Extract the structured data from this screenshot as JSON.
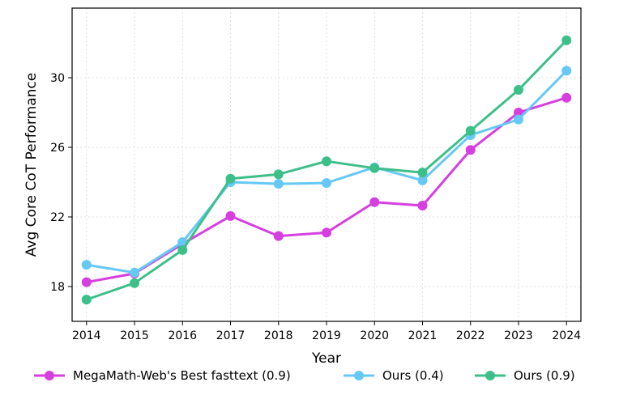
{
  "chart_data": {
    "type": "line",
    "xlabel": "Year",
    "ylabel": "Avg Core CoT Performance",
    "x": [
      2014,
      2015,
      2016,
      2017,
      2018,
      2019,
      2020,
      2021,
      2022,
      2023,
      2024
    ],
    "x_ticks": [
      "2014",
      "2015",
      "2016",
      "2017",
      "2018",
      "2019",
      "2020",
      "2021",
      "2022",
      "2023",
      "2024"
    ],
    "y_ticks": [
      18,
      22,
      26,
      30
    ],
    "y_tick_labels": [
      "18",
      "22",
      "26",
      "30"
    ],
    "xlim": [
      2013.7,
      2024.3
    ],
    "ylim": [
      16,
      34
    ],
    "grid": true,
    "legend_position": "bottom",
    "series": [
      {
        "name": "MegaMath-Web's Best fasttext (0.9)",
        "color": "#d63ee0",
        "values": [
          18.25,
          18.75,
          20.45,
          22.05,
          20.9,
          21.1,
          22.85,
          22.65,
          25.85,
          28.0,
          28.85
        ]
      },
      {
        "name": "Ours (0.4)",
        "color": "#66c8f5",
        "values": [
          19.25,
          18.8,
          20.55,
          24.0,
          23.9,
          23.95,
          24.85,
          24.1,
          26.7,
          27.6,
          30.4
        ]
      },
      {
        "name": "Ours (0.9)",
        "color": "#3dbf8a",
        "values": [
          17.25,
          18.2,
          20.1,
          24.2,
          24.45,
          25.2,
          24.8,
          24.55,
          26.95,
          29.3,
          32.15
        ]
      }
    ]
  }
}
